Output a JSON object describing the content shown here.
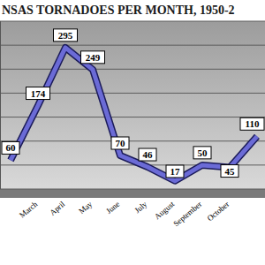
{
  "chart_data": {
    "type": "line",
    "title": "NSAS TORNADOES PER MONTH, 1950-2",
    "categories": [
      null,
      "March",
      "April",
      "May",
      "June",
      "July",
      "August",
      "September",
      "October",
      null
    ],
    "values": [
      60,
      174,
      295,
      249,
      70,
      46,
      17,
      50,
      45,
      110
    ],
    "color": "#6b6bd6",
    "ylim": [
      0,
      350
    ],
    "yticks": [
      0,
      50,
      100,
      150,
      200,
      250,
      300,
      350
    ],
    "grid": true,
    "data_labels": true,
    "tick_labels": "x"
  }
}
